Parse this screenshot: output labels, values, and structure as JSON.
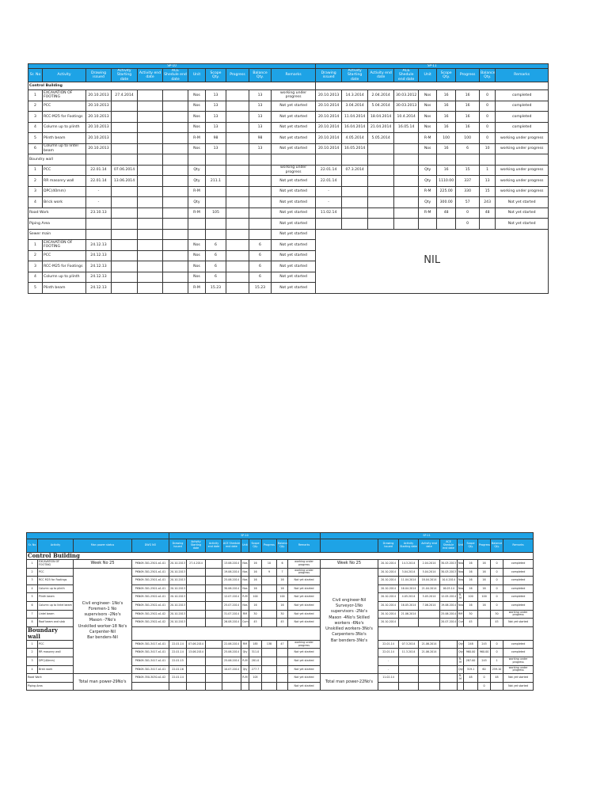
{
  "colors": {
    "header_blue": "#1ea3e6"
  },
  "top": {
    "section_left": "SP-10",
    "section_right": "SP-11",
    "headers_left": [
      "Sr. No",
      "Activity",
      "Drawing issued",
      "Activity Starting date",
      "Activity end date",
      "ACE Shedule end date",
      "Unit",
      "Scope Qty.",
      "Progress",
      "Balance Qty.",
      "Remarks"
    ],
    "headers_right": [
      "Drawing issued",
      "Activity Starting date",
      "Activity end date",
      "ACE Shedule end date",
      "Unit",
      "Scope Qty.",
      "Progress",
      "Balance Qty.",
      "Remarks"
    ],
    "nil_text": "NIL",
    "rows": [
      {
        "kind": "full",
        "label": "Control Building"
      },
      {
        "kind": "item",
        "cells": [
          "1",
          "EXCAVATION OF FOOTING",
          "20.10.2013",
          "27.4.2014",
          "",
          "",
          "Nos",
          "13",
          "",
          "13",
          "working under progress",
          "20.10.2013",
          "14.3.2014",
          "2.04.2014",
          "30.03.2012",
          "Nos",
          "16",
          "16",
          "0",
          "completed"
        ]
      },
      {
        "kind": "item",
        "cells": [
          "2",
          "PCC",
          "20.10.2013",
          "",
          "",
          "",
          "Nos",
          "13",
          "",
          "13",
          "Not yet started",
          "20.10.2014",
          "3.04.2014",
          "5.04.2014",
          "30.03.2013",
          "Nos",
          "16",
          "16",
          "0",
          "completed"
        ]
      },
      {
        "kind": "item",
        "cells": [
          "3",
          "RCC-M25 for Footings",
          "20.10.2013",
          "",
          "",
          "",
          "Nos",
          "13",
          "",
          "13",
          "Not yet started",
          "20.10.2014",
          "11.04.2014",
          "18.04.2014",
          "10.4.2014",
          "Nos",
          "16",
          "16",
          "0",
          "completed"
        ]
      },
      {
        "kind": "item",
        "cells": [
          "4",
          "Column up to plinth",
          "20.10.2013",
          "",
          "",
          "",
          "Nos",
          "13",
          "",
          "13",
          "Not yet started",
          "20.10.2014",
          "16.04.2014",
          "21.04.2014",
          "16.05.14",
          "Nos",
          "16",
          "16",
          "0",
          "completed"
        ]
      },
      {
        "kind": "item",
        "cells": [
          "5",
          "Plinth beam",
          "20.10.2013",
          "",
          "",
          "",
          "R-M",
          "98",
          "",
          "98",
          "Not yet started",
          "20.10.2014",
          "4.05.2014",
          "5.05.2014",
          "",
          "R-M",
          "100",
          "100",
          "0",
          "working under progress"
        ]
      },
      {
        "kind": "item",
        "cells": [
          "6",
          "Column up to lintel beam",
          "20.10.2013",
          "",
          "",
          "",
          "Nos",
          "13",
          "",
          "13",
          "Not yet started",
          "20.10.2014",
          "16.05.2014",
          "",
          "",
          "Nos",
          "16",
          "6",
          "10",
          "working under progress"
        ]
      },
      {
        "kind": "group",
        "cells": [
          "Boundry wall",
          "",
          "",
          "",
          "",
          "",
          "",
          "",
          "",
          "",
          "",
          "",
          "",
          "",
          "",
          "",
          "",
          "",
          ""
        ]
      },
      {
        "kind": "item",
        "cells": [
          "1",
          "PCC",
          "22.01.14",
          "07.06.2014",
          "",
          "",
          "Qty",
          "",
          "",
          "",
          "working under progress",
          "22.01.14",
          "07.3.2014",
          "",
          "",
          "Qty",
          "16",
          "15",
          "1",
          "working under progress"
        ]
      },
      {
        "kind": "item",
        "cells": [
          "2",
          "RR masonry wall",
          "22.01.14",
          "13.06.2014",
          "",
          "",
          "Qty",
          "211.1",
          "",
          "",
          "Not yet started",
          "22.01.14",
          "",
          "",
          "",
          "Qty",
          "1110.00",
          "337",
          "13",
          "working under progress"
        ]
      },
      {
        "kind": "item",
        "cells": [
          "3",
          "DPC(40mm)",
          "-",
          "",
          "",
          "",
          "R-M",
          "",
          "",
          "",
          "Not yet started",
          "-",
          "",
          "",
          "",
          "R-M",
          "225.00",
          "330",
          "15",
          "working under progress"
        ]
      },
      {
        "kind": "item",
        "cells": [
          "4",
          "Brick work",
          "-",
          "",
          "",
          "",
          "Qty",
          "",
          "",
          "",
          "Not yet started",
          "-",
          "",
          "",
          "",
          "Qty",
          "300.00",
          "57",
          "243",
          "Not yet started"
        ]
      },
      {
        "kind": "group",
        "cells": [
          "Road Work",
          "23.10.13",
          "",
          "",
          "",
          "R-M",
          "105",
          "",
          "",
          "Not yet started",
          "11.02.14",
          "",
          "",
          "",
          "R-M",
          "48",
          "0",
          "48",
          "Not yet started"
        ]
      },
      {
        "kind": "group",
        "cells": [
          "Piping Area",
          "",
          "",
          "",
          "",
          "",
          "",
          "",
          "",
          "Not yet started",
          "",
          "",
          "",
          "",
          "",
          "",
          "0",
          "",
          "Not yet started"
        ]
      },
      {
        "kind": "nilstart",
        "cells": [
          "Sewer main",
          "",
          "",
          "",
          "",
          "",
          "",
          "",
          "",
          "Not yet started"
        ]
      },
      {
        "kind": "nil",
        "cells": [
          "1",
          "EXCAVATION OF FOOTING",
          "24.12.13",
          "",
          "",
          "",
          "Nos",
          "6",
          "",
          "6",
          "Not yet started"
        ]
      },
      {
        "kind": "nil",
        "cells": [
          "2",
          "PCC",
          "24.12.13",
          "",
          "",
          "",
          "Nos",
          "6",
          "",
          "6",
          "Not yet started"
        ]
      },
      {
        "kind": "nil",
        "cells": [
          "3",
          "RCC-M25 for Footings",
          "24.12.13",
          "",
          "",
          "",
          "Nos",
          "6",
          "",
          "6",
          "Not yet started"
        ]
      },
      {
        "kind": "nil",
        "cells": [
          "4",
          "Column up to plinth",
          "24.12.13",
          "",
          "",
          "",
          "Nos",
          "6",
          "",
          "6",
          "Not yet started"
        ]
      },
      {
        "kind": "nil",
        "cells": [
          "5",
          "Plinth beam",
          "24.12.13",
          "",
          "",
          "",
          "R-M",
          "15.23",
          "",
          "15.23",
          "Not yet started"
        ]
      }
    ]
  },
  "bottom": {
    "section_left": "SP-10",
    "section_right": "SP-11",
    "headers_left": [
      "Sr. No",
      "Activity",
      "Man power status",
      "DWG NO",
      "Drawing issued",
      "Activity Starting date",
      "Activity end date",
      "ACE Shedule end date",
      "Unit",
      "Scope Qty.",
      "Progress",
      "Balance Qty.",
      "Remarks"
    ],
    "headers_right": [
      "",
      "Drawing issued",
      "Activity Starting date",
      "Activity end date",
      "ACE Shedule end date",
      "Unit",
      "Scope Qty.",
      "Progress",
      "Balance Qty.",
      "Remarks"
    ],
    "manpower": {
      "week_left": "Week No 25",
      "week_right": "Week No 25",
      "crew_left": "Civil engineer- 1No's\nForemen-1 No\nsupervisors -2No's\nMason -7No's\nUnskilled worker-18 No's\nCarpenter-Nil\nBar benders-Nil",
      "crew_right": "Civil engineer-Nil\nSurveyor-1No\nsupervisors -2No's\nMason -4No's   Skilled workers -6No's\nUnskilled workers-3No's\nCarpenters-3No's\nBar benders-3No's",
      "total_left": "Total man power-29No's",
      "total_right": "Total man power-22No's"
    },
    "control_building_label": "Control Building",
    "boundary_wall_label": "Boundary wall",
    "rows": [
      {
        "cells": [
          "1",
          "EXCAVATION OF FOOTING",
          "PKN09-301-2501-a1-01",
          "20.10.2013",
          "27.4.2014",
          "",
          "13.06.2014",
          "Nos",
          "16",
          "10",
          "6",
          "working under progress",
          "20.10.2014",
          "14.3.2014",
          "2.04.2014",
          "30.03.2013",
          "Nos",
          "16",
          "16",
          "0",
          "completed"
        ]
      },
      {
        "cells": [
          "2",
          "PCC",
          "PKN09-301-2501-a1-01",
          "20.10.2013",
          "",
          "",
          "19.06.2014",
          "Nos",
          "16",
          "9",
          "7",
          "working under progress",
          "20.10.2014",
          "3.04.2014",
          "5.04.2014",
          "30.03.2013",
          "Nos",
          "16",
          "16",
          "0",
          "completed"
        ]
      },
      {
        "cells": [
          "3",
          "RCC M25 for Footings",
          "PKN09-301-2501-a1-01",
          "20.10.2013",
          "",
          "",
          "25.06.2014",
          "Nos",
          "16",
          "",
          "16",
          "Not yet started",
          "20.10.2014",
          "11.04.2014",
          "18.04.2014",
          "10.4.2014",
          "Nos",
          "16",
          "16",
          "0",
          "completed"
        ]
      },
      {
        "cells": [
          "4",
          "Column up to plinth",
          "PKN09-301-2501-a1-01",
          "20.10.2013",
          "",
          "",
          "30.06.2014",
          "Nos",
          "16",
          "",
          "16",
          "Not yet started",
          "20.10.2014",
          "16.04.2014",
          "21.04.2014",
          "16.05.14",
          "Nos",
          "16",
          "16",
          "0",
          "completed"
        ]
      },
      {
        "cells": [
          "5",
          "Plinth beam",
          "PKN09-301-2502-a1-01",
          "20.10.2013",
          "",
          "",
          "12.07.2014",
          "R-M",
          "100",
          "",
          "100",
          "Not yet started",
          "20.10.2014",
          "4.05.2014",
          "5.05.2014",
          "12.05.2014",
          "R-M",
          "100",
          "100",
          "0",
          "completed"
        ]
      },
      {
        "cells": [
          "6",
          "Column up to lintel beam",
          "PKN09-301-2502-a1-01",
          "20.10.2013",
          "",
          "",
          "25.07.2014",
          "Nos",
          "16",
          "",
          "16",
          "Not yet started",
          "20.10.2014",
          "16.05.2014",
          "7.06.2014",
          "19.06.2014",
          "Nos",
          "16",
          "16",
          "0",
          "completed"
        ]
      },
      {
        "cells": [
          "7",
          "Lintel beam",
          "PKN09-301-2502-a1-02",
          "20.10.2013",
          "",
          "",
          "31.07.2014",
          "RM",
          "30",
          "",
          "30",
          "Not yet started",
          "20.10.2014",
          "21.06.2014",
          "",
          "25.06.2014",
          "RM",
          "30",
          "",
          "30",
          "working under progress"
        ]
      },
      {
        "cells": [
          "8",
          "Roof beam and slab",
          "PKN09-301-2502-a1-02",
          "20.10.2013",
          "",
          "",
          "26.08.2014",
          "Cum",
          "45",
          "",
          "45",
          "Not yet started",
          "20.10.2014",
          "",
          "",
          "20.07.2014",
          "Cum",
          "45",
          "",
          "45",
          "Not yet started"
        ]
      },
      {
        "cells": [
          "1",
          "PCC",
          "PKN09-301-3417-a1-01",
          "22.01.14",
          "07.06.2014",
          "",
          "22.06.2014",
          "RM",
          "185",
          "138",
          "47",
          "working under progress",
          "22.01.14",
          "07.3.2014",
          "21.06.2014",
          "",
          "Qty",
          "248",
          "245",
          "0",
          "completed"
        ]
      },
      {
        "cells": [
          "2",
          "RR masonry wall",
          "PKN09-301-3417-a1-01",
          "22.01.14",
          "13.06.2014",
          "",
          "25.06.2014",
          "Qty",
          "311.0",
          "",
          "",
          "Not yet started",
          "22.01.14",
          "11.3.2014",
          "21.06.2014",
          "",
          "Qty",
          "960.00",
          "960.00",
          "0",
          "completed"
        ]
      },
      {
        "cells": [
          "3",
          "DPC(40mm)",
          "PKN09-301-3417-a1-01",
          "22.01.15",
          "",
          "",
          "25.06.2014",
          "R-M",
          "281.0",
          "",
          "",
          "Not yet started",
          "-",
          "",
          "",
          "",
          "R-M",
          "287.00",
          "245",
          "1",
          "working under progress"
        ]
      },
      {
        "cells": [
          "4",
          "Brick work",
          "PKN09-301-3417-a1-01",
          "22.01.16",
          "",
          "",
          "10.07.2014",
          "Qty",
          "277.7",
          "",
          "",
          "Not yet started",
          "-",
          "",
          "",
          "",
          "Qty",
          "319.1",
          "60",
          "259.10",
          "working under progress"
        ]
      },
      {
        "cells": [
          "Road Work",
          "PKN09-350-3030-a1-02",
          "22.01.14",
          "",
          "",
          "",
          "R-M",
          "105",
          "",
          "",
          "Not yet started",
          "11.02.14",
          "",
          "",
          "",
          "R-M",
          "48",
          "0",
          "48",
          "Not yet started"
        ]
      },
      {
        "cells": [
          "Piping Area",
          "",
          "",
          "",
          "",
          "",
          "",
          "",
          "",
          "",
          "Not yet started",
          "",
          "",
          "",
          "",
          "",
          "",
          "0",
          "",
          "Not yet started"
        ]
      }
    ]
  }
}
